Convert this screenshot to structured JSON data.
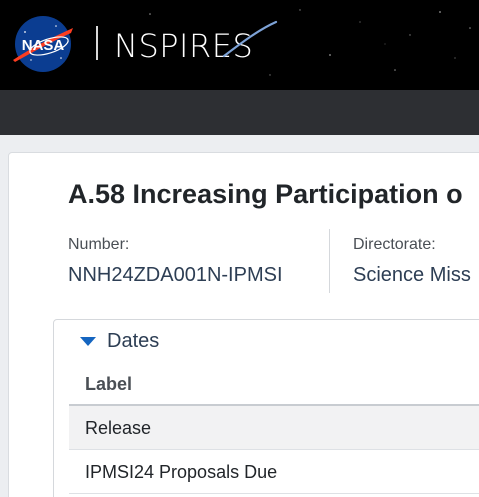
{
  "header": {
    "brand": "NSPIRES",
    "logo_text": "NASA"
  },
  "solicitation": {
    "title": "A.58 Increasing Participation o",
    "number_label": "Number:",
    "number_value": "NNH24ZDA001N-IPMSI",
    "directorate_label": "Directorate:",
    "directorate_value": "Science Miss"
  },
  "dates": {
    "toggle_label": "Dates",
    "column_header": "Label",
    "rows": [
      {
        "label": "Release"
      },
      {
        "label": "IPMSI24 Proposals Due"
      }
    ]
  },
  "colors": {
    "header_bg": "#000000",
    "navbar_bg": "#2d2f33",
    "accent_blue": "#1565c0",
    "nasa_blue": "#0b3d91",
    "nasa_red": "#fc3d21"
  }
}
